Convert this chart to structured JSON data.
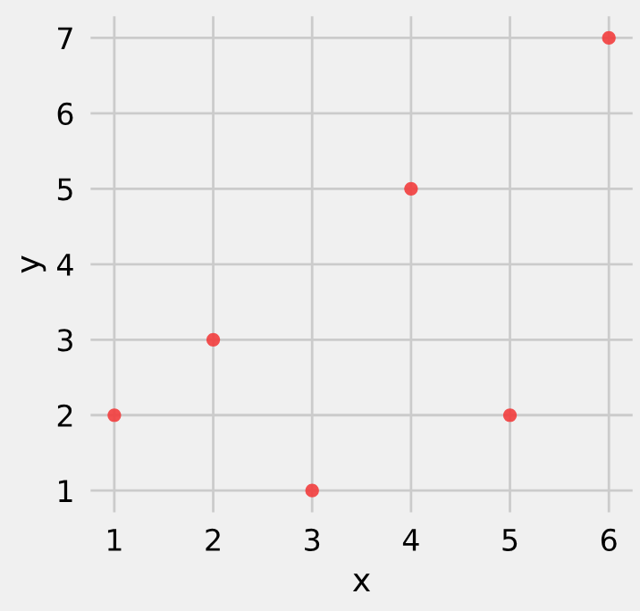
{
  "chart_data": {
    "type": "scatter",
    "xlabel": "x",
    "ylabel": "y",
    "x": [
      1,
      2,
      3,
      4,
      5,
      6
    ],
    "series": [
      {
        "color": "#f23d3d",
        "values": [
          2,
          3,
          1,
          5,
          2,
          7
        ]
      }
    ],
    "xlim": [
      0.75,
      6.25
    ],
    "ylim": [
      0.7,
      7.3
    ],
    "xticks": [
      1,
      2,
      3,
      4,
      5,
      6
    ],
    "yticks": [
      1,
      2,
      3,
      4,
      5,
      6,
      7
    ],
    "grid": true,
    "marker": "circle"
  }
}
